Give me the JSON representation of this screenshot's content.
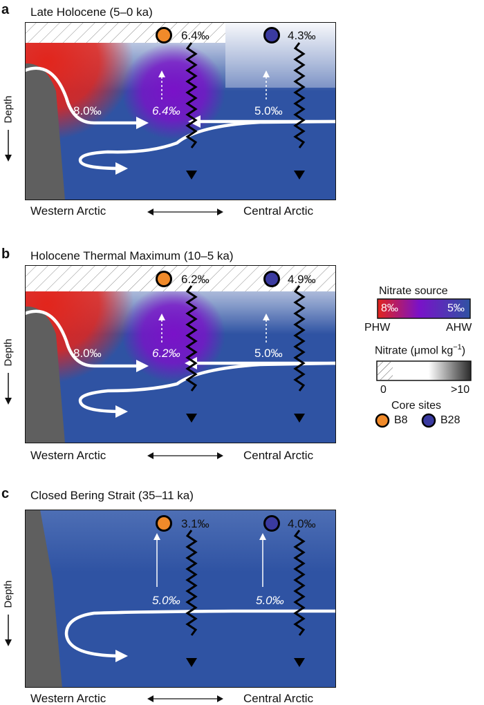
{
  "panels": [
    {
      "label": "a",
      "title": "Late Holocene (5–0 ka)",
      "depth_label": "Depth",
      "b8_value": "6.4‰",
      "b28_value": "4.3‰",
      "west_value": "8.0‰",
      "mid_value": "6.4‰",
      "east_value": "5.0‰",
      "west_label": "Western Arctic",
      "east_label": "Central Arctic"
    },
    {
      "label": "b",
      "title": "Holocene Thermal Maximum (10–5 ka)",
      "depth_label": "Depth",
      "b8_value": "6.2‰",
      "b28_value": "4.9‰",
      "west_value": "8.0‰",
      "mid_value": "6.2‰",
      "east_value": "5.0‰",
      "west_label": "Western Arctic",
      "east_label": "Central Arctic"
    },
    {
      "label": "c",
      "title": "Closed Bering Strait (35–11 ka)",
      "depth_label": "Depth",
      "b8_value": "3.1‰",
      "b28_value": "4.0‰",
      "mid_value": "5.0‰",
      "east_value": "5.0‰",
      "west_label": "Western Arctic",
      "east_label": "Central Arctic"
    }
  ],
  "legend": {
    "source_title": "Nitrate source",
    "phw_value": "8‰",
    "ahw_value": "5‰",
    "phw_label": "PHW",
    "ahw_label": "AHW",
    "nitrate_title": "Nitrate (μmol kg",
    "nitrate_exp": "−1",
    "nitrate_close": ")",
    "scale_min": "0",
    "scale_max": ">10",
    "core_title": "Core sites",
    "b8_label": "B8",
    "b28_label": "B28"
  },
  "colors": {
    "ocean_blue": "#2f53a3",
    "red_phw": "#e2251c",
    "purple_mix": "#7a12c8",
    "b8_orange": "#f08a2a",
    "b28_navy": "#3a3aa0",
    "shelf_grey": "#5f5f5f"
  }
}
